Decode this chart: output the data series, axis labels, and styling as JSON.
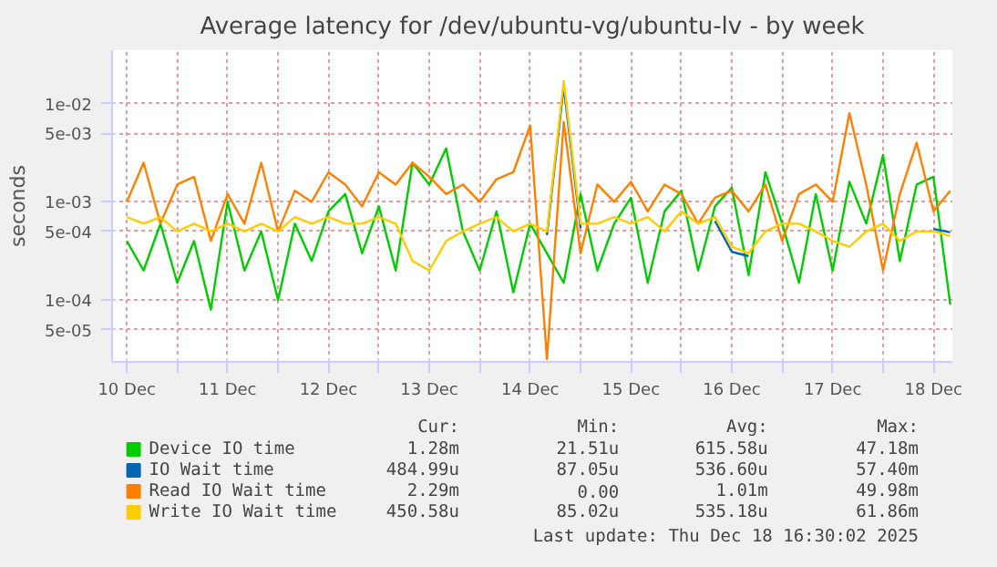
{
  "chart_data": {
    "type": "line",
    "title": "Average latency for /dev/ubuntu-vg/ubuntu-lv - by week",
    "ylabel": "seconds",
    "log": "y",
    "grid": true,
    "legend": "bottom",
    "line_style": "solid",
    "x": [
      "2025-12-10T12:00",
      "2025-12-10T16:00",
      "2025-12-10T20:00",
      "2025-12-11T00:00",
      "2025-12-11T04:00",
      "2025-12-11T08:00",
      "2025-12-11T12:00",
      "2025-12-11T16:00",
      "2025-12-11T20:00",
      "2025-12-12T00:00",
      "2025-12-12T04:00",
      "2025-12-12T08:00",
      "2025-12-12T12:00",
      "2025-12-12T16:00",
      "2025-12-12T20:00",
      "2025-12-13T00:00",
      "2025-12-13T04:00",
      "2025-12-13T08:00",
      "2025-12-13T12:00",
      "2025-12-13T16:00",
      "2025-12-13T20:00",
      "2025-12-14T00:00",
      "2025-12-14T04:00",
      "2025-12-14T08:00",
      "2025-12-14T12:00",
      "2025-12-14T16:00",
      "2025-12-14T20:00",
      "2025-12-15T00:00",
      "2025-12-15T04:00",
      "2025-12-15T08:00",
      "2025-12-15T12:00",
      "2025-12-15T16:00",
      "2025-12-15T20:00",
      "2025-12-16T00:00",
      "2025-12-16T04:00",
      "2025-12-16T08:00",
      "2025-12-16T12:00",
      "2025-12-16T16:00",
      "2025-12-16T20:00",
      "2025-12-17T00:00",
      "2025-12-17T04:00",
      "2025-12-17T08:00",
      "2025-12-17T12:00",
      "2025-12-17T16:00",
      "2025-12-17T20:00",
      "2025-12-18T00:00",
      "2025-12-18T04:00",
      "2025-12-18T08:00",
      "2025-12-18T12:00",
      "2025-12-18T16:00"
    ],
    "xlim": [
      "2025-12-10T08:30",
      "2025-12-18T16:30"
    ],
    "xticks": [
      {
        "value": "2025-12-10T12:00",
        "label": "10 Dec"
      },
      {
        "value": "2025-12-11T00:00",
        "label": null
      },
      {
        "value": "2025-12-11T12:00",
        "label": "11 Dec"
      },
      {
        "value": "2025-12-12T00:00",
        "label": null
      },
      {
        "value": "2025-12-12T12:00",
        "label": "12 Dec"
      },
      {
        "value": "2025-12-13T00:00",
        "label": null
      },
      {
        "value": "2025-12-13T12:00",
        "label": "13 Dec"
      },
      {
        "value": "2025-12-14T00:00",
        "label": null
      },
      {
        "value": "2025-12-14T12:00",
        "label": "14 Dec"
      },
      {
        "value": "2025-12-15T00:00",
        "label": null
      },
      {
        "value": "2025-12-15T12:00",
        "label": "15 Dec"
      },
      {
        "value": "2025-12-16T00:00",
        "label": null
      },
      {
        "value": "2025-12-16T12:00",
        "label": "16 Dec"
      },
      {
        "value": "2025-12-17T00:00",
        "label": null
      },
      {
        "value": "2025-12-17T12:00",
        "label": "17 Dec"
      },
      {
        "value": "2025-12-18T00:00",
        "label": null
      },
      {
        "value": "2025-12-18T12:00",
        "label": "18 Dec"
      }
    ],
    "ylim": [
      2.35e-05,
      0.035
    ],
    "yticks": [
      {
        "value": 5e-05,
        "label": "5e-05"
      },
      {
        "value": 0.0001,
        "label": "1e-04"
      },
      {
        "value": 0.0005,
        "label": "5e-04"
      },
      {
        "value": 0.001,
        "label": "1e-03"
      },
      {
        "value": 0.005,
        "label": "5e-03"
      },
      {
        "value": 0.01,
        "label": "1e-02"
      }
    ],
    "series": [
      {
        "name": "Device IO time",
        "color": "#00cc00",
        "values": [
          0.0004,
          0.0002,
          0.0006,
          0.00015,
          0.0004,
          8e-05,
          0.001,
          0.0002,
          0.0005,
          0.0001,
          0.0006,
          0.00025,
          0.0008,
          0.0012,
          0.0003,
          0.0009,
          0.0002,
          0.0025,
          0.0015,
          0.0035,
          0.0005,
          0.0002,
          0.0008,
          0.00012,
          0.0006,
          0.0003,
          0.00015,
          0.0012,
          0.0002,
          0.0006,
          0.0011,
          0.00015,
          0.0008,
          0.0013,
          0.0002,
          0.0009,
          0.0014,
          0.00018,
          0.002,
          0.0006,
          0.00015,
          0.0012,
          0.0002,
          0.0016,
          0.0006,
          0.003,
          0.00025,
          0.0015,
          0.0018,
          9e-05
        ]
      },
      {
        "name": "IO Wait time",
        "color": "#0066b3",
        "values": [
          null,
          null,
          null,
          null,
          null,
          null,
          null,
          null,
          null,
          null,
          null,
          null,
          null,
          null,
          null,
          null,
          null,
          null,
          null,
          null,
          null,
          null,
          null,
          null,
          null,
          0.00046,
          0.015,
          0.00054,
          null,
          null,
          null,
          null,
          null,
          null,
          null,
          0.00064,
          0.00031,
          0.00028,
          null,
          null,
          null,
          null,
          null,
          null,
          null,
          null,
          null,
          null,
          0.00053,
          0.00049
        ]
      },
      {
        "name": "Read IO Wait time",
        "color": "#ff8000",
        "values": [
          0.001,
          0.0025,
          0.0006,
          0.0015,
          0.0018,
          0.0004,
          0.0012,
          0.0006,
          0.0025,
          0.0005,
          0.0013,
          0.001,
          0.002,
          0.0015,
          0.0009,
          0.002,
          0.0015,
          0.0025,
          0.0018,
          0.0012,
          0.0015,
          0.001,
          0.0017,
          0.002,
          0.006,
          2.5e-05,
          0.0065,
          0.0003,
          0.0015,
          0.001,
          0.0016,
          0.0008,
          0.0015,
          0.0012,
          0.0006,
          0.0011,
          0.0013,
          0.0008,
          0.0015,
          0.0004,
          0.0012,
          0.0015,
          0.001,
          0.008,
          0.0015,
          0.0002,
          0.0012,
          0.004,
          0.0008,
          0.0013
        ]
      },
      {
        "name": "Write IO Wait time",
        "color": "#ffcc00",
        "values": [
          0.0007,
          0.0006,
          0.0007,
          0.0005,
          0.0006,
          0.0005,
          0.0006,
          0.0005,
          0.0006,
          0.0005,
          0.0007,
          0.0006,
          0.0007,
          0.0006,
          0.0006,
          0.0007,
          0.0006,
          0.00025,
          0.0002,
          0.0004,
          0.0005,
          0.0006,
          0.0007,
          0.0005,
          0.0006,
          0.0005,
          0.017,
          0.0006,
          0.0006,
          0.0007,
          0.0006,
          0.0007,
          0.0005,
          0.0008,
          0.0006,
          0.0007,
          0.00035,
          0.0003,
          0.0005,
          0.0006,
          0.0006,
          0.0005,
          0.0004,
          0.00035,
          0.0005,
          0.0006,
          0.0004,
          0.0005,
          0.0005,
          0.00045
        ]
      }
    ],
    "annotations": [
      "Cur:",
      "Min:",
      "Avg:",
      "Max:",
      "1.28m",
      "21.51u",
      "615.58u",
      "47.18m",
      "484.99u",
      "87.05u",
      "536.60u",
      "57.40m",
      "2.29m",
      "0.00",
      "1.01m",
      "49.98m",
      "450.58u",
      "85.02u",
      "535.18u",
      "61.86m",
      "Last update: Thu Dec 18 16:30:02 2025"
    ]
  }
}
